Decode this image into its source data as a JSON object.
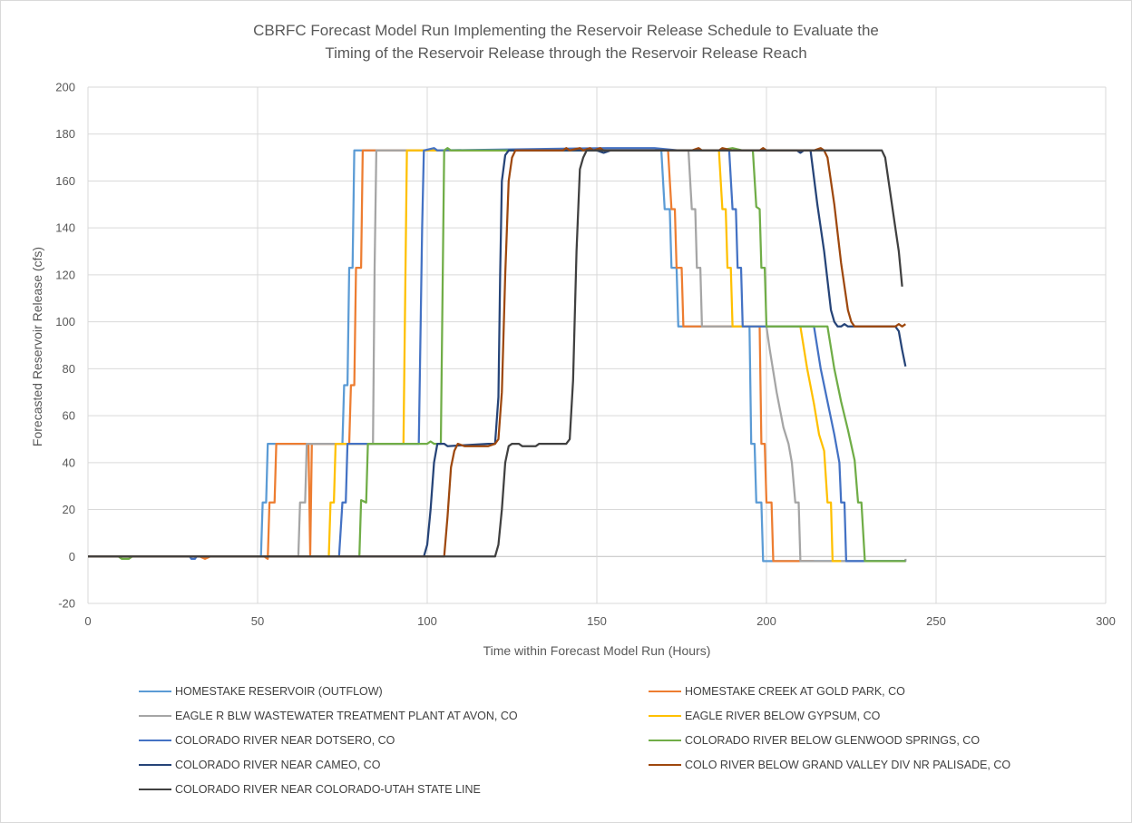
{
  "chart_data": {
    "type": "line",
    "title_lines": [
      "CBRFC Forecast Model Run Implementing the Reservoir Release Schedule to Evaluate the",
      "Timing of the Reservoir Release through the Reservoir Release Reach"
    ],
    "xlabel": "Time within Forecast Model Run (Hours)",
    "ylabel": "Forecasted Reservoir Release (cfs)",
    "xlim": [
      0,
      300
    ],
    "ylim": [
      -20,
      200
    ],
    "xticks": [
      0,
      50,
      100,
      150,
      200,
      250,
      300
    ],
    "yticks": [
      -20,
      0,
      20,
      40,
      60,
      80,
      100,
      120,
      140,
      160,
      180,
      200
    ],
    "grid": true,
    "legend_position": "bottom",
    "series": [
      {
        "name": "HOMESTAKE RESERVOIR (OUTFLOW)",
        "color": "#5B9BD5",
        "points": [
          [
            0,
            0
          ],
          [
            51,
            0
          ],
          [
            51.5,
            23
          ],
          [
            52.5,
            23
          ],
          [
            53,
            48
          ],
          [
            75,
            48
          ],
          [
            75.5,
            73
          ],
          [
            76.5,
            73
          ],
          [
            77,
            123
          ],
          [
            78,
            123
          ],
          [
            78.5,
            173
          ],
          [
            169,
            173
          ],
          [
            170,
            148
          ],
          [
            171.5,
            148
          ],
          [
            172,
            123
          ],
          [
            173.5,
            123
          ],
          [
            174,
            98
          ],
          [
            195,
            98
          ],
          [
            195.5,
            48
          ],
          [
            196.5,
            48
          ],
          [
            197,
            23
          ],
          [
            198.5,
            23
          ],
          [
            199,
            -2
          ],
          [
            241,
            -2
          ]
        ]
      },
      {
        "name": "HOMESTAKE CREEK AT GOLD PARK, CO",
        "color": "#ED7D31",
        "points": [
          [
            0,
            0
          ],
          [
            33,
            0
          ],
          [
            34.5,
            -1
          ],
          [
            36,
            0
          ],
          [
            52,
            0
          ],
          [
            53,
            -1
          ],
          [
            53.5,
            23
          ],
          [
            55,
            23
          ],
          [
            55.5,
            48
          ],
          [
            65,
            48
          ],
          [
            65.5,
            0.5
          ],
          [
            66,
            48
          ],
          [
            77,
            48
          ],
          [
            77.5,
            73
          ],
          [
            78.5,
            73
          ],
          [
            79,
            123
          ],
          [
            80.5,
            123
          ],
          [
            81,
            173
          ],
          [
            86,
            173
          ],
          [
            110,
            173
          ],
          [
            171,
            173
          ],
          [
            172,
            148
          ],
          [
            173,
            148
          ],
          [
            173.5,
            123
          ],
          [
            175,
            123
          ],
          [
            175.5,
            98
          ],
          [
            198,
            98
          ],
          [
            198.5,
            48
          ],
          [
            199.5,
            48
          ],
          [
            200,
            23
          ],
          [
            201.5,
            23
          ],
          [
            202,
            -2
          ],
          [
            214,
            -2
          ]
        ]
      },
      {
        "name": "EAGLE R BLW WASTEWATER TREATMENT PLANT AT AVON, CO",
        "color": "#A5A5A5",
        "points": [
          [
            0,
            0
          ],
          [
            62,
            0
          ],
          [
            62.5,
            23
          ],
          [
            64,
            23
          ],
          [
            64.5,
            48
          ],
          [
            84,
            48
          ],
          [
            84.5,
            123
          ],
          [
            85,
            173
          ],
          [
            175,
            173
          ],
          [
            177,
            173
          ],
          [
            178,
            148
          ],
          [
            179,
            148
          ],
          [
            179.5,
            123
          ],
          [
            180.5,
            123
          ],
          [
            181,
            98
          ],
          [
            200,
            98
          ],
          [
            201,
            88
          ],
          [
            203,
            70
          ],
          [
            205,
            55
          ],
          [
            206.5,
            48
          ],
          [
            207.5,
            40
          ],
          [
            208.5,
            23
          ],
          [
            209.5,
            23
          ],
          [
            210,
            -2
          ],
          [
            241,
            -2
          ],
          [
            241,
            -1
          ]
        ]
      },
      {
        "name": "EAGLE RIVER BELOW GYPSUM, CO",
        "color": "#FFC000",
        "points": [
          [
            0,
            0
          ],
          [
            71,
            0
          ],
          [
            71.5,
            23
          ],
          [
            72.5,
            23
          ],
          [
            73,
            48
          ],
          [
            93,
            48
          ],
          [
            94,
            173
          ],
          [
            186,
            173
          ],
          [
            187,
            148
          ],
          [
            188,
            148
          ],
          [
            188.5,
            123
          ],
          [
            189.5,
            123
          ],
          [
            190,
            98
          ],
          [
            210,
            98
          ],
          [
            212,
            80
          ],
          [
            214,
            65
          ],
          [
            215.5,
            52
          ],
          [
            217,
            45
          ],
          [
            218,
            23
          ],
          [
            219,
            23
          ],
          [
            219.5,
            -2
          ],
          [
            222,
            -2
          ]
        ]
      },
      {
        "name": "COLORADO RIVER NEAR DOTSERO, CO",
        "color": "#4472C4",
        "points": [
          [
            0,
            0
          ],
          [
            30,
            0
          ],
          [
            30.5,
            -1
          ],
          [
            31.5,
            -1
          ],
          [
            32,
            0
          ],
          [
            74,
            0
          ],
          [
            75,
            23
          ],
          [
            76,
            23
          ],
          [
            76.5,
            48
          ],
          [
            97.5,
            48
          ],
          [
            98.5,
            140
          ],
          [
            99,
            173
          ],
          [
            102,
            174
          ],
          [
            103,
            173
          ],
          [
            153,
            174
          ],
          [
            167,
            174
          ],
          [
            174,
            173
          ],
          [
            176,
            173
          ],
          [
            189,
            173
          ],
          [
            190,
            148
          ],
          [
            191,
            148
          ],
          [
            191.5,
            123
          ],
          [
            192.5,
            123
          ],
          [
            193,
            98
          ],
          [
            214,
            98
          ],
          [
            216,
            80
          ],
          [
            218,
            66
          ],
          [
            220,
            52
          ],
          [
            221.5,
            40
          ],
          [
            222,
            23
          ],
          [
            223,
            23
          ],
          [
            223.5,
            -2
          ],
          [
            241,
            -2
          ]
        ]
      },
      {
        "name": "COLORADO RIVER BELOW GLENWOOD SPRINGS, CO",
        "color": "#70AD47",
        "points": [
          [
            0,
            0
          ],
          [
            9,
            0
          ],
          [
            10,
            -1
          ],
          [
            12,
            -1
          ],
          [
            13,
            0
          ],
          [
            80,
            0
          ],
          [
            80.5,
            24
          ],
          [
            82,
            23
          ],
          [
            82.5,
            48
          ],
          [
            100,
            48
          ],
          [
            101,
            49
          ],
          [
            102,
            48
          ],
          [
            104,
            48
          ],
          [
            105,
            173
          ],
          [
            106,
            174
          ],
          [
            107,
            173
          ],
          [
            150,
            173
          ],
          [
            186,
            173
          ],
          [
            190,
            174
          ],
          [
            193,
            173
          ],
          [
            196,
            173
          ],
          [
            197,
            149
          ],
          [
            198,
            148
          ],
          [
            198.5,
            123
          ],
          [
            199.5,
            123
          ],
          [
            200,
            98
          ],
          [
            218,
            98
          ],
          [
            220,
            80
          ],
          [
            222,
            66
          ],
          [
            224,
            54
          ],
          [
            226,
            41
          ],
          [
            227,
            23
          ],
          [
            228,
            23
          ],
          [
            229,
            -2
          ],
          [
            241,
            -2
          ]
        ]
      },
      {
        "name": "COLORADO RIVER NEAR CAMEO, CO",
        "color": "#264478",
        "points": [
          [
            0,
            0
          ],
          [
            99,
            0
          ],
          [
            100,
            5
          ],
          [
            101,
            20
          ],
          [
            102,
            40
          ],
          [
            103,
            48
          ],
          [
            105,
            48
          ],
          [
            106,
            47
          ],
          [
            118,
            48
          ],
          [
            120,
            48
          ],
          [
            121,
            68
          ],
          [
            121.5,
            120
          ],
          [
            122,
            160
          ],
          [
            123,
            171
          ],
          [
            124,
            173
          ],
          [
            150,
            173
          ],
          [
            152,
            172
          ],
          [
            154,
            173
          ],
          [
            200,
            173
          ],
          [
            209,
            173
          ],
          [
            210,
            172
          ],
          [
            211,
            173
          ],
          [
            213,
            173
          ],
          [
            215,
            150
          ],
          [
            217,
            130
          ],
          [
            219,
            105
          ],
          [
            220,
            100
          ],
          [
            221,
            98
          ],
          [
            222,
            98
          ],
          [
            223,
            99
          ],
          [
            224,
            98
          ],
          [
            238,
            98
          ],
          [
            239,
            96
          ],
          [
            240,
            88
          ],
          [
            241,
            81
          ]
        ]
      },
      {
        "name": "COLO RIVER BELOW GRAND VALLEY DIV NR PALISADE, CO",
        "color": "#9E480E",
        "points": [
          [
            0,
            0
          ],
          [
            105,
            0
          ],
          [
            106,
            17
          ],
          [
            107,
            38
          ],
          [
            108,
            45
          ],
          [
            109,
            48
          ],
          [
            111,
            47
          ],
          [
            118,
            47
          ],
          [
            120,
            48
          ],
          [
            121,
            50
          ],
          [
            122,
            70
          ],
          [
            123,
            120
          ],
          [
            124,
            160
          ],
          [
            125,
            170
          ],
          [
            126,
            173
          ],
          [
            140,
            173
          ],
          [
            141,
            174
          ],
          [
            142,
            173
          ],
          [
            145,
            174
          ],
          [
            146,
            173
          ],
          [
            148,
            174
          ],
          [
            149,
            173
          ],
          [
            151,
            174
          ],
          [
            152,
            173
          ],
          [
            175,
            173
          ],
          [
            178,
            173
          ],
          [
            180,
            174
          ],
          [
            181,
            173
          ],
          [
            186,
            173
          ],
          [
            187,
            174
          ],
          [
            190,
            173
          ],
          [
            198,
            173
          ],
          [
            199,
            174
          ],
          [
            200,
            173
          ],
          [
            214,
            173
          ],
          [
            216,
            174
          ],
          [
            217,
            173
          ],
          [
            218,
            170
          ],
          [
            220,
            150
          ],
          [
            222,
            125
          ],
          [
            224,
            105
          ],
          [
            225,
            100
          ],
          [
            226,
            98
          ],
          [
            238,
            98
          ],
          [
            239,
            99
          ],
          [
            240,
            98
          ],
          [
            241,
            99
          ]
        ]
      },
      {
        "name": "COLORADO RIVER NEAR COLORADO-UTAH STATE LINE",
        "color": "#404040",
        "points": [
          [
            0,
            0
          ],
          [
            120,
            0
          ],
          [
            121,
            5
          ],
          [
            122,
            20
          ],
          [
            123,
            40
          ],
          [
            124,
            47
          ],
          [
            125,
            48
          ],
          [
            127,
            48
          ],
          [
            128,
            47
          ],
          [
            132,
            47
          ],
          [
            133,
            48
          ],
          [
            141,
            48
          ],
          [
            142,
            50
          ],
          [
            143,
            75
          ],
          [
            144,
            130
          ],
          [
            145,
            165
          ],
          [
            146,
            170
          ],
          [
            147,
            173
          ],
          [
            150,
            173
          ],
          [
            170,
            173
          ],
          [
            200,
            173
          ],
          [
            234,
            173
          ],
          [
            235,
            170
          ],
          [
            236,
            160
          ],
          [
            238,
            140
          ],
          [
            239,
            130
          ],
          [
            240,
            115
          ]
        ]
      }
    ]
  }
}
